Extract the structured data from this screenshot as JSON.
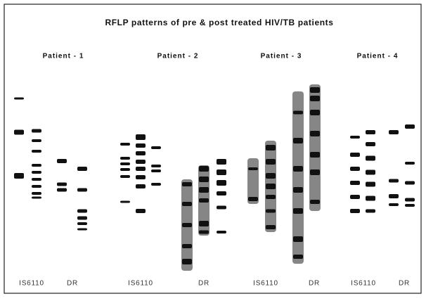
{
  "figure": {
    "title": "RFLP patterns of pre & post treated HIV/TB patients",
    "patients": [
      {
        "label": "Patient - 1",
        "probes": [
          "IS6110",
          "DR"
        ]
      },
      {
        "label": "Patient - 2",
        "probes": [
          "IS6110",
          "DR"
        ]
      },
      {
        "label": "Patient - 3",
        "probes": [
          "IS6110",
          "DR"
        ]
      },
      {
        "label": "Patient - 4",
        "probes": [
          "IS6110",
          "DR"
        ]
      }
    ]
  }
}
